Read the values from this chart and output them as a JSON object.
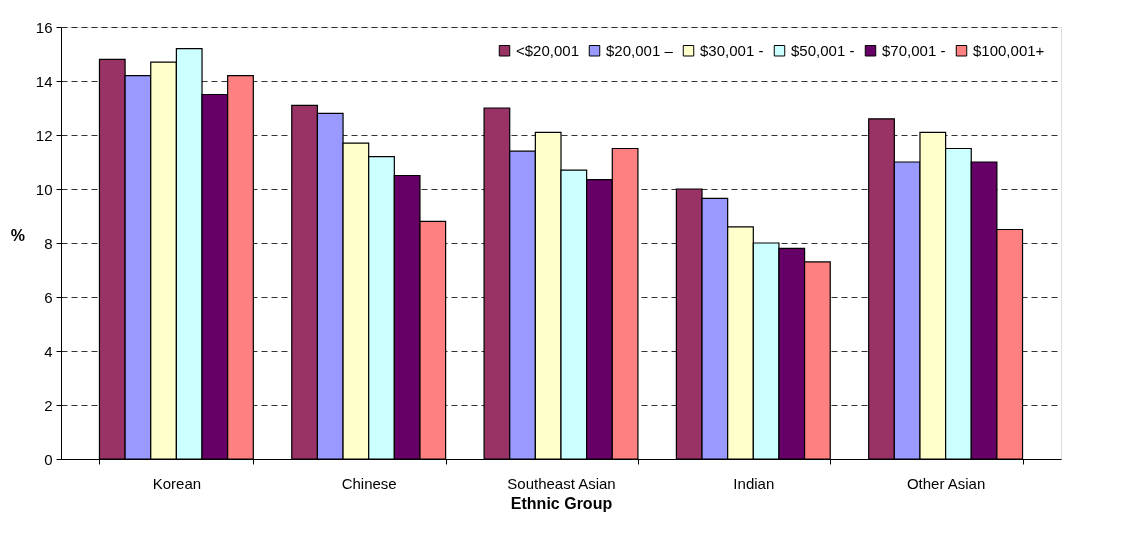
{
  "chart_data": {
    "type": "bar",
    "xlabel": "Ethnic Group",
    "ylabel": "%",
    "categories": [
      "Korean",
      "Chinese",
      "Southeast Asian",
      "Indian",
      "Other Asian"
    ],
    "series": [
      {
        "name": "<$20,001",
        "color": "#993366",
        "values": [
          14.8,
          13.1,
          13.0,
          10.0,
          12.6
        ]
      },
      {
        "name": "$20,001 –",
        "color": "#9999ff",
        "values": [
          14.2,
          12.8,
          11.4,
          9.65,
          11.0
        ]
      },
      {
        "name": "$30,001 -",
        "color": "#ffffcc",
        "values": [
          14.7,
          11.7,
          12.1,
          8.6,
          12.1
        ]
      },
      {
        "name": "$50,001 -",
        "color": "#ccffff",
        "values": [
          15.2,
          11.2,
          10.7,
          8.0,
          11.5
        ]
      },
      {
        "name": "$70,001 -",
        "color": "#660066",
        "values": [
          13.5,
          10.5,
          10.35,
          7.8,
          11.0
        ]
      },
      {
        "name": "$100,001+",
        "color": "#ff8080",
        "values": [
          14.2,
          8.8,
          11.5,
          7.3,
          8.5
        ]
      }
    ],
    "ylim": [
      0,
      16
    ],
    "yticks": [
      0,
      2,
      4,
      6,
      8,
      10,
      12,
      14,
      16
    ],
    "grid": "y",
    "legend": "top right"
  }
}
